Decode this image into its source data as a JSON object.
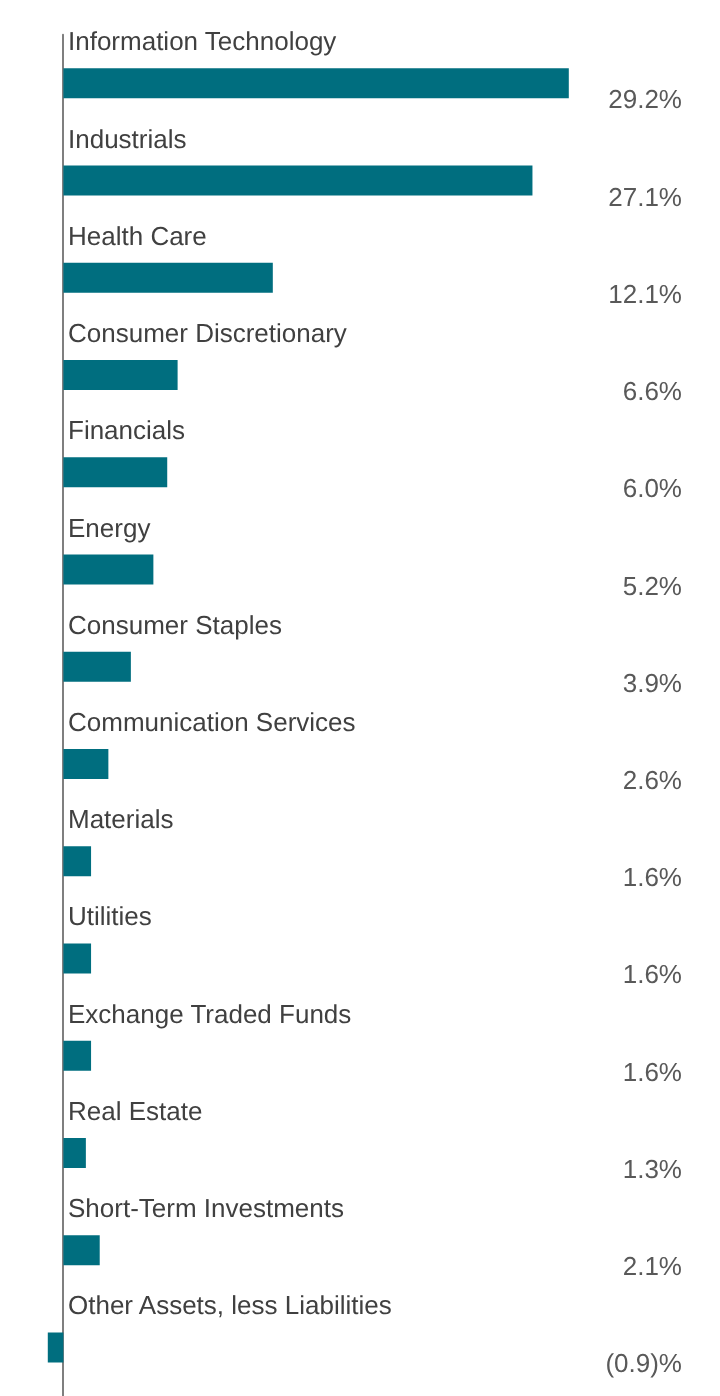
{
  "chart_data": {
    "type": "bar",
    "orientation": "horizontal",
    "categories": [
      "Information Technology",
      "Industrials",
      "Health Care",
      "Consumer Discretionary",
      "Financials",
      "Energy",
      "Consumer Staples",
      "Communication Services",
      "Materials",
      "Utilities",
      "Exchange Traded Funds",
      "Real Estate",
      "Short-Term Investments",
      "Other Assets, less Liabilities"
    ],
    "values": [
      29.2,
      27.1,
      12.1,
      6.6,
      6.0,
      5.2,
      3.9,
      2.6,
      1.6,
      1.6,
      1.6,
      1.3,
      2.1,
      -0.9
    ],
    "value_labels": [
      "29.2%",
      "27.1%",
      "12.1%",
      "6.6%",
      "6.0%",
      "5.2%",
      "3.9%",
      "2.6%",
      "1.6%",
      "1.6%",
      "1.6%",
      "1.3%",
      "2.1%",
      "(0.9)%"
    ],
    "color": "#006e7f"
  }
}
